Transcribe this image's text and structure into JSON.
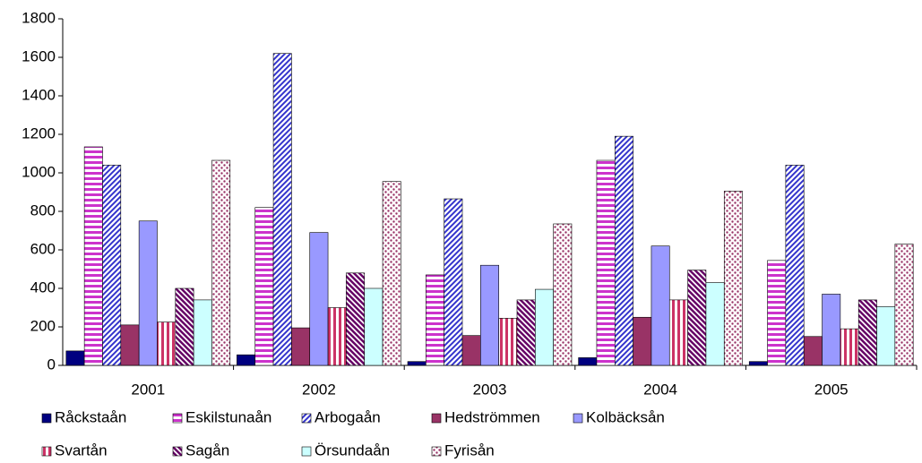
{
  "chart_data": {
    "type": "bar",
    "categories": [
      "2001",
      "2002",
      "2003",
      "2004",
      "2005"
    ],
    "series": [
      {
        "name": "Råckstaån",
        "color": "#000080",
        "pattern": "solid",
        "values": [
          75,
          55,
          20,
          40,
          20
        ]
      },
      {
        "name": "Eskilstunaån",
        "color": "#cc33cc",
        "pattern": "horizontal",
        "values": [
          1135,
          820,
          470,
          1065,
          545
        ]
      },
      {
        "name": "Arbogaån",
        "color": "#3333cc",
        "pattern": "diagonal-up",
        "values": [
          1040,
          1620,
          865,
          1190,
          1040
        ]
      },
      {
        "name": "Hedströmmen",
        "color": "#993366",
        "pattern": "solid",
        "values": [
          210,
          195,
          155,
          250,
          150
        ]
      },
      {
        "name": "Kolbäcksån",
        "color": "#9999ff",
        "pattern": "solid",
        "values": [
          750,
          690,
          520,
          620,
          370
        ]
      },
      {
        "name": "Svartån",
        "color": "#cc3366",
        "pattern": "vertical",
        "values": [
          225,
          300,
          245,
          340,
          190
        ]
      },
      {
        "name": "Sagån",
        "color": "#660066",
        "pattern": "diagonal-down",
        "values": [
          400,
          480,
          340,
          495,
          340
        ]
      },
      {
        "name": "Örsundaån",
        "color": "#ccffff",
        "pattern": "solid",
        "values": [
          340,
          400,
          395,
          430,
          305
        ]
      },
      {
        "name": "Fyrisån",
        "color": "#993366",
        "pattern": "dots",
        "values": [
          1065,
          955,
          735,
          905,
          630
        ]
      }
    ],
    "ylim": [
      0,
      1800
    ],
    "yticks": [
      0,
      200,
      400,
      600,
      800,
      1000,
      1200,
      1400,
      1600,
      1800
    ]
  }
}
